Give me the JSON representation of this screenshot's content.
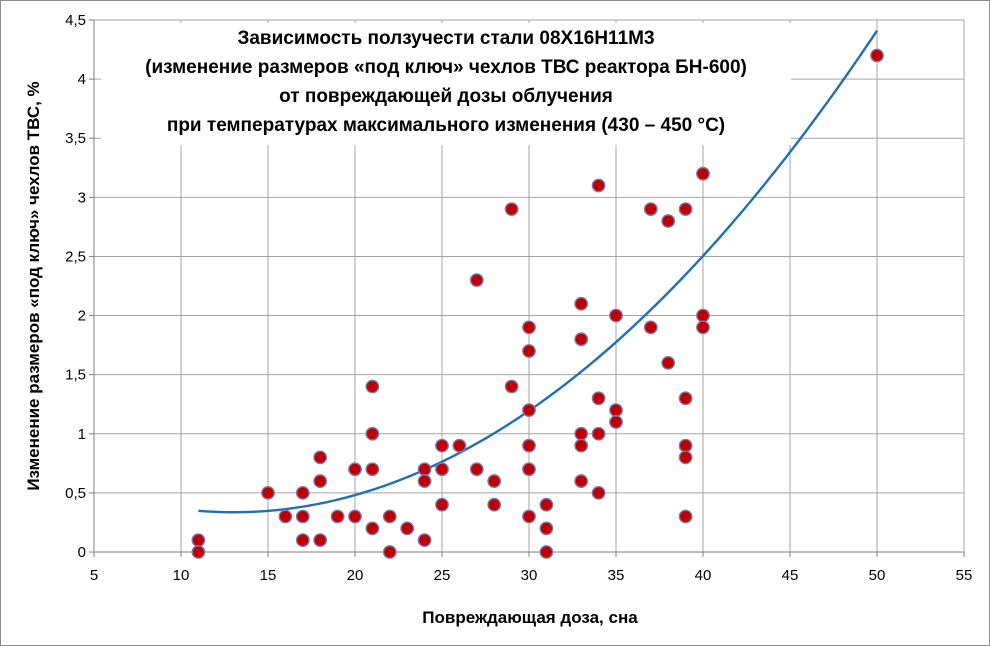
{
  "chart_data": {
    "type": "scatter",
    "title_lines": [
      "Зависимость ползучести стали 08Х16Н11М3",
      "(изменение размеров «под ключ» чехлов ТВС реактора БН-600)",
      "от повреждающей дозы облучения",
      "при температурах максимального изменения (430 – 450 °С)"
    ],
    "xlabel": "Повреждающая доза, сна",
    "ylabel": "Изменение размеров «под ключ» чехлов ТВС, %",
    "xlim": [
      5,
      55
    ],
    "ylim": [
      0,
      4.5
    ],
    "x_ticks": [
      "5",
      "10",
      "15",
      "20",
      "25",
      "30",
      "35",
      "40",
      "45",
      "50",
      "55"
    ],
    "y_ticks": [
      "0",
      "0,5",
      "1",
      "1,5",
      "2",
      "2,5",
      "3",
      "3,5",
      "4",
      "4,5"
    ],
    "grid": true,
    "legend": "none",
    "colors": {
      "marker_fill": "#c00000",
      "marker_edge": "#7a7ab0",
      "trend": "#1f6fb4",
      "grid": "#a6a6a6"
    },
    "points": [
      [
        11,
        0.1
      ],
      [
        11,
        0.0
      ],
      [
        15,
        0.5
      ],
      [
        16,
        0.3
      ],
      [
        17,
        0.5
      ],
      [
        17,
        0.3
      ],
      [
        17,
        0.1
      ],
      [
        18,
        0.8
      ],
      [
        18,
        0.6
      ],
      [
        18,
        0.1
      ],
      [
        19,
        0.3
      ],
      [
        20,
        0.7
      ],
      [
        20,
        0.3
      ],
      [
        21,
        1.4
      ],
      [
        21,
        1.0
      ],
      [
        21,
        0.7
      ],
      [
        21,
        0.2
      ],
      [
        22,
        0.3
      ],
      [
        22,
        0.0
      ],
      [
        23,
        0.2
      ],
      [
        24,
        0.7
      ],
      [
        24,
        0.6
      ],
      [
        24,
        0.1
      ],
      [
        25,
        0.9
      ],
      [
        25,
        0.7
      ],
      [
        25,
        0.4
      ],
      [
        26,
        0.9
      ],
      [
        27,
        2.3
      ],
      [
        27,
        0.7
      ],
      [
        28,
        0.6
      ],
      [
        28,
        0.4
      ],
      [
        29,
        2.9
      ],
      [
        29,
        1.4
      ],
      [
        30,
        1.9
      ],
      [
        30,
        1.7
      ],
      [
        30,
        1.2
      ],
      [
        30,
        0.9
      ],
      [
        30,
        0.7
      ],
      [
        30,
        0.3
      ],
      [
        31,
        0.4
      ],
      [
        31,
        0.2
      ],
      [
        31,
        0.0
      ],
      [
        33,
        2.1
      ],
      [
        33,
        1.8
      ],
      [
        33,
        1.0
      ],
      [
        33,
        0.9
      ],
      [
        33,
        0.6
      ],
      [
        34,
        3.1
      ],
      [
        34,
        1.3
      ],
      [
        34,
        1.0
      ],
      [
        34,
        0.5
      ],
      [
        35,
        2.0
      ],
      [
        35,
        1.2
      ],
      [
        35,
        1.1
      ],
      [
        37,
        2.9
      ],
      [
        37,
        1.9
      ],
      [
        38,
        2.8
      ],
      [
        38,
        1.6
      ],
      [
        39,
        2.9
      ],
      [
        39,
        1.3
      ],
      [
        39,
        0.9
      ],
      [
        39,
        0.8
      ],
      [
        39,
        0.3
      ],
      [
        40,
        3.2
      ],
      [
        40,
        2.0
      ],
      [
        40,
        1.9
      ],
      [
        50,
        4.2
      ]
    ],
    "trendline": {
      "type": "polynomial",
      "order": 2,
      "x_range": [
        11,
        50
      ],
      "coeffs": [
        0.8416,
        -0.0776,
        0.002979
      ]
    }
  }
}
